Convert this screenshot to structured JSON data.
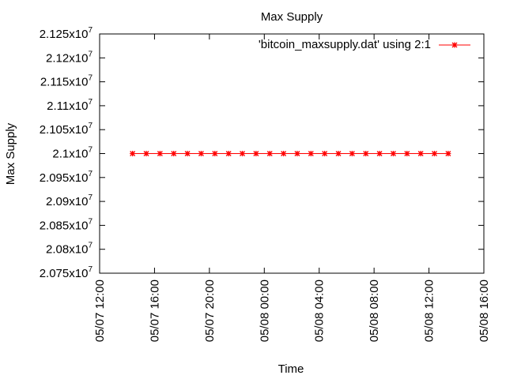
{
  "chart_data": {
    "type": "line",
    "title": "Max Supply",
    "xlabel": "Time",
    "ylabel": "Max Supply",
    "grid": false,
    "legend_position": "top-right",
    "y_tick_base_labels": [
      "2.075x10",
      "2.08x10",
      "2.085x10",
      "2.09x10",
      "2.095x10",
      "2.1x10",
      "2.105x10",
      "2.11x10",
      "2.115x10",
      "2.12x10",
      "2.125x10"
    ],
    "y_tick_exponent": "7",
    "y_ticks": [
      20750000,
      20800000,
      20850000,
      20900000,
      20950000,
      21000000,
      21050000,
      21100000,
      21150000,
      21200000,
      21250000
    ],
    "ylim": [
      20750000,
      21250000
    ],
    "x_tick_labels": [
      "05/07 12:00",
      "05/07 16:00",
      "05/07 20:00",
      "05/08 00:00",
      "05/08 04:00",
      "05/08 08:00",
      "05/08 12:00",
      "05/08 16:00"
    ],
    "x_ticks_hours": [
      0,
      4,
      8,
      12,
      16,
      20,
      24,
      28
    ],
    "xlim_hours": [
      0,
      28
    ],
    "x_unit": "hours since 05/07 12:00",
    "series": [
      {
        "name": "'bitcoin_maxsupply.dat' using 2:1",
        "color": "#ff0000",
        "x": [
          2.4,
          3.4,
          4.4,
          5.4,
          6.4,
          7.4,
          8.4,
          9.4,
          10.4,
          11.4,
          12.4,
          13.4,
          14.4,
          15.4,
          16.4,
          17.4,
          18.4,
          19.4,
          20.4,
          21.4,
          22.4,
          23.4,
          24.4,
          25.4
        ],
        "y": [
          21000000,
          21000000,
          21000000,
          21000000,
          21000000,
          21000000,
          21000000,
          21000000,
          21000000,
          21000000,
          21000000,
          21000000,
          21000000,
          21000000,
          21000000,
          21000000,
          21000000,
          21000000,
          21000000,
          21000000,
          21000000,
          21000000,
          21000000,
          21000000
        ]
      }
    ]
  }
}
